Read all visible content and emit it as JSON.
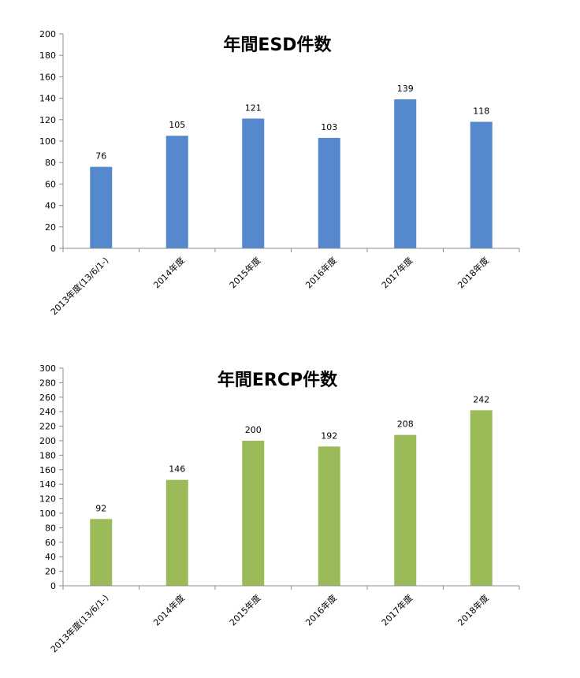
{
  "chart_data": [
    {
      "type": "bar",
      "title": "年間ESD件数",
      "categories": [
        "2013年度(13/6/1-)",
        "2014年度",
        "2015年度",
        "2016年度",
        "2017年度",
        "2018年度"
      ],
      "values": [
        76,
        105,
        121,
        103,
        139,
        118
      ],
      "ylim": [
        0,
        200
      ],
      "ytick_step": 20,
      "yticks": [
        "0",
        "20",
        "40",
        "60",
        "80",
        "100",
        "120",
        "140",
        "160",
        "180",
        "200"
      ],
      "color": "#5588cc",
      "grid": false,
      "legend": "none"
    },
    {
      "type": "bar",
      "title": "年間ERCP件数",
      "categories": [
        "2013年度(13/6/1-)",
        "2014年度",
        "2015年度",
        "2016年度",
        "2017年度",
        "2018年度"
      ],
      "values": [
        92,
        146,
        200,
        192,
        208,
        242
      ],
      "ylim": [
        0,
        300
      ],
      "ytick_step": 20,
      "yticks": [
        "0",
        "20",
        "40",
        "60",
        "80",
        "100",
        "120",
        "140",
        "160",
        "180",
        "200",
        "220",
        "240",
        "260",
        "280",
        "300"
      ],
      "color": "#9bbb59",
      "grid": false,
      "legend": "none"
    }
  ]
}
